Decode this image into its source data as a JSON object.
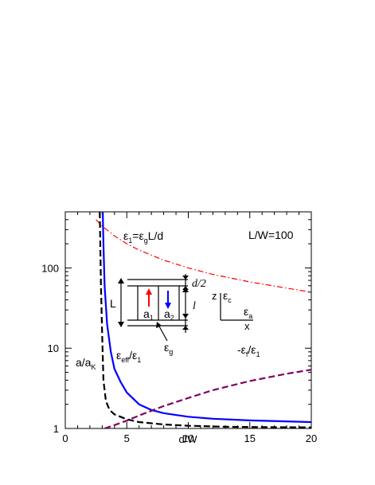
{
  "chart_data": {
    "type": "line",
    "xlabel": "d/W",
    "ylabel": "",
    "xlim": [
      0,
      20
    ],
    "ylim": [
      1,
      500
    ],
    "yscale": "log",
    "xticks": [
      0,
      5,
      10,
      15,
      20
    ],
    "yticks": [
      1,
      10,
      100
    ],
    "grid": false,
    "series": [
      {
        "name": "ε1=εgL/d",
        "color": "#ff0000",
        "style": "dash-dot",
        "x": [
          2.5,
          3,
          4,
          5,
          6,
          8,
          10,
          12,
          15,
          18,
          20
        ],
        "y": [
          400,
          333,
          250,
          200,
          167,
          125,
          100,
          83,
          67,
          56,
          50
        ]
      },
      {
        "name": "εeff/ε1",
        "color": "#0000ff",
        "style": "solid",
        "x": [
          3.05,
          3.1,
          3.2,
          3.4,
          3.7,
          4,
          4.5,
          5,
          6,
          7,
          8,
          10,
          12,
          15,
          20
        ],
        "y": [
          500,
          200,
          60,
          20,
          9,
          5.5,
          3.8,
          2.8,
          2.0,
          1.7,
          1.55,
          1.4,
          1.32,
          1.26,
          1.2
        ]
      },
      {
        "name": "a/aK",
        "color": "#000000",
        "style": "dashed",
        "x": [
          2.8,
          2.9,
          3.0,
          3.1,
          3.3,
          3.6,
          4,
          5,
          6,
          8,
          10,
          13,
          16,
          20
        ],
        "y": [
          500,
          60,
          15,
          4,
          2.2,
          1.7,
          1.5,
          1.3,
          1.2,
          1.12,
          1.08,
          1.05,
          1.04,
          1.03
        ]
      },
      {
        "name": "-εf/ε1",
        "color": "#800060",
        "style": "dashed",
        "x": [
          3.2,
          4,
          5,
          6,
          8,
          10,
          12,
          15,
          18,
          20
        ],
        "y": [
          1.0,
          1.1,
          1.25,
          1.45,
          1.9,
          2.4,
          3.0,
          3.9,
          4.8,
          5.4
        ]
      }
    ],
    "annotations": {
      "eps1": "ε1=εgL/d",
      "ratio": "L/W=100",
      "eff": "εeff/ε1",
      "aK": "a/aK",
      "ef": "-εf/ε1"
    },
    "inset": {
      "L": "L",
      "d2": "d/2",
      "l": "l",
      "a1": "a1",
      "a2": "a2",
      "eg": "εg",
      "z": "z",
      "x": "x",
      "ec": "εc",
      "ea": "εa"
    }
  }
}
